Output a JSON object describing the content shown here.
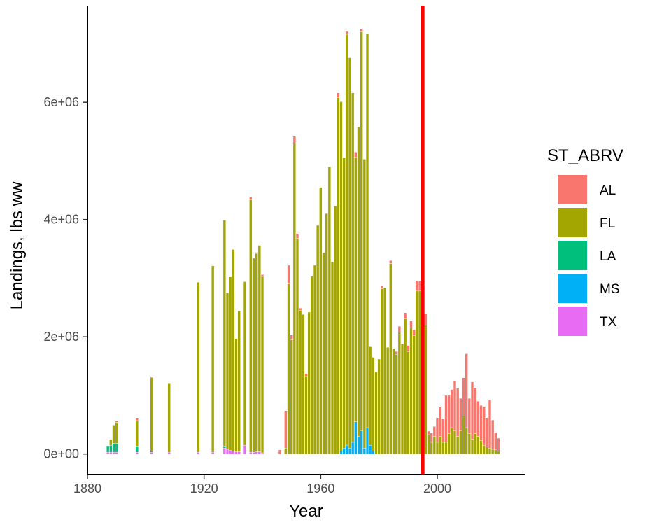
{
  "chart_data": {
    "type": "bar",
    "stacked": true,
    "xlabel": "Year",
    "ylabel": "Landings, lbs ww",
    "xlim": [
      1880,
      2030
    ],
    "ylim": [
      -350000,
      7650000
    ],
    "x_ticks": [
      1880,
      1920,
      1960,
      2000
    ],
    "y_ticks": [
      0,
      2000000,
      4000000,
      6000000
    ],
    "y_tick_labels": [
      "0e+00",
      "2e+06",
      "4e+06",
      "6e+06"
    ],
    "reference_line": {
      "x": 1995,
      "color": "#ff0000"
    },
    "legend": {
      "title": "ST_ABRV",
      "placement": "right",
      "entries": [
        {
          "label": "AL",
          "color": "#f8766d"
        },
        {
          "label": "FL",
          "color": "#a3a500"
        },
        {
          "label": "LA",
          "color": "#00bf7d"
        },
        {
          "label": "MS",
          "color": "#00b0f6"
        },
        {
          "label": "TX",
          "color": "#e76bf3"
        }
      ]
    },
    "series_order": [
      "TX",
      "MS",
      "LA",
      "FL",
      "AL"
    ],
    "bars": [
      {
        "year": 1887,
        "TX": 30000,
        "LA": 110000
      },
      {
        "year": 1888,
        "TX": 30000,
        "LA": 120000,
        "FL": 100000
      },
      {
        "year": 1889,
        "TX": 30000,
        "LA": 150000,
        "FL": 310000,
        "AL": 10000
      },
      {
        "year": 1890,
        "TX": 30000,
        "LA": 150000,
        "FL": 360000,
        "AL": 20000
      },
      {
        "year": 1897,
        "TX": 30000,
        "LA": 100000,
        "FL": 440000,
        "AL": 50000
      },
      {
        "year": 1902,
        "TX": 30000,
        "LA": 20000,
        "FL": 1250000,
        "AL": 20000
      },
      {
        "year": 1908,
        "TX": 30000,
        "FL": 1180000
      },
      {
        "year": 1918,
        "TX": 30000,
        "FL": 2900000
      },
      {
        "year": 1923,
        "TX": 30000,
        "FL": 3180000
      },
      {
        "year": 1927,
        "TX": 100000,
        "LA": 30000,
        "FL": 3860000
      },
      {
        "year": 1928,
        "TX": 80000,
        "FL": 2670000
      },
      {
        "year": 1929,
        "TX": 60000,
        "FL": 2960000
      },
      {
        "year": 1930,
        "TX": 50000,
        "FL": 3440000
      },
      {
        "year": 1931,
        "TX": 40000,
        "FL": 1930000
      },
      {
        "year": 1932,
        "TX": 40000,
        "FL": 2400000
      },
      {
        "year": 1934,
        "TX": 150000,
        "FL": 2790000
      },
      {
        "year": 1936,
        "TX": 30000,
        "FL": 4310000,
        "AL": 40000
      },
      {
        "year": 1937,
        "TX": 30000,
        "FL": 3310000
      },
      {
        "year": 1938,
        "TX": 40000,
        "FL": 3380000,
        "AL": 20000
      },
      {
        "year": 1939,
        "TX": 40000,
        "FL": 3520000
      },
      {
        "year": 1940,
        "TX": 20000,
        "FL": 3010000,
        "AL": 30000
      },
      {
        "year": 1946,
        "AL": 70000
      },
      {
        "year": 1948,
        "FL": 100000,
        "AL": 640000
      },
      {
        "year": 1949,
        "FL": 2900000,
        "AL": 320000
      },
      {
        "year": 1950,
        "FL": 1950000,
        "AL": 80000
      },
      {
        "year": 1951,
        "FL": 5300000,
        "AL": 120000
      },
      {
        "year": 1952,
        "FL": 3680000,
        "AL": 80000
      },
      {
        "year": 1953,
        "FL": 2450000,
        "AL": 40000
      },
      {
        "year": 1954,
        "FL": 2380000
      },
      {
        "year": 1955,
        "FL": 1330000,
        "AL": 40000
      },
      {
        "year": 1956,
        "FL": 2420000
      },
      {
        "year": 1957,
        "FL": 3030000
      },
      {
        "year": 1958,
        "FL": 3220000
      },
      {
        "year": 1959,
        "FL": 3900000
      },
      {
        "year": 1960,
        "FL": 4550000
      },
      {
        "year": 1961,
        "FL": 3440000
      },
      {
        "year": 1962,
        "FL": 4100000
      },
      {
        "year": 1963,
        "FL": 4900000
      },
      {
        "year": 1964,
        "FL": 3280000
      },
      {
        "year": 1965,
        "FL": 4230000
      },
      {
        "year": 1966,
        "FL": 6080000,
        "AL": 80000
      },
      {
        "year": 1967,
        "MS": 50000,
        "FL": 5960000
      },
      {
        "year": 1968,
        "MS": 100000,
        "FL": 4950000
      },
      {
        "year": 1969,
        "MS": 150000,
        "FL": 7010000,
        "AL": 50000
      },
      {
        "year": 1970,
        "MS": 100000,
        "FL": 6660000
      },
      {
        "year": 1971,
        "MS": 200000,
        "FL": 5960000
      },
      {
        "year": 1972,
        "MS": 550000,
        "FL": 4500000,
        "AL": 100000
      },
      {
        "year": 1973,
        "MS": 300000,
        "FL": 5280000
      },
      {
        "year": 1974,
        "MS": 400000,
        "FL": 6800000,
        "AL": 50000
      },
      {
        "year": 1975,
        "MS": 100000,
        "FL": 4930000
      },
      {
        "year": 1976,
        "MS": 450000,
        "FL": 6720000
      },
      {
        "year": 1977,
        "MS": 150000,
        "FL": 1680000
      },
      {
        "year": 1978,
        "MS": 50000,
        "FL": 1600000
      },
      {
        "year": 1979,
        "FL": 1400000
      },
      {
        "year": 1980,
        "FL": 1620000
      },
      {
        "year": 1981,
        "FL": 2820000,
        "AL": 50000
      },
      {
        "year": 1982,
        "FL": 2830000
      },
      {
        "year": 1983,
        "FL": 1820000
      },
      {
        "year": 1984,
        "FL": 3250000,
        "AL": 50000
      },
      {
        "year": 1985,
        "FL": 1800000
      },
      {
        "year": 1986,
        "FL": 1700000,
        "AL": 50000
      },
      {
        "year": 1987,
        "FL": 2080000,
        "AL": 100000
      },
      {
        "year": 1988,
        "FL": 1880000
      },
      {
        "year": 1989,
        "FL": 2310000,
        "AL": 100000
      },
      {
        "year": 1990,
        "FL": 1750000,
        "AL": 100000
      },
      {
        "year": 1991,
        "FL": 2150000,
        "AL": 120000
      },
      {
        "year": 1992,
        "FL": 2020000,
        "AL": 100000
      },
      {
        "year": 1993,
        "FL": 2780000,
        "AL": 180000
      },
      {
        "year": 1994,
        "FL": 2780000,
        "AL": 180000
      },
      {
        "year": 1995,
        "FL": 2000000,
        "AL": 150000
      },
      {
        "year": 1996,
        "FL": 2200000,
        "AL": 200000
      },
      {
        "year": 1997,
        "FL": 330000,
        "AL": 60000
      },
      {
        "year": 1998,
        "FL": 200000,
        "AL": 160000
      },
      {
        "year": 1999,
        "FL": 300000,
        "AL": 170000
      },
      {
        "year": 2000,
        "FL": 200000,
        "AL": 420000
      },
      {
        "year": 2001,
        "FL": 300000,
        "AL": 500000
      },
      {
        "year": 2002,
        "FL": 200000,
        "AL": 400000
      },
      {
        "year": 2003,
        "FL": 200000,
        "AL": 800000
      },
      {
        "year": 2004,
        "FL": 350000,
        "AL": 650000
      },
      {
        "year": 2005,
        "FL": 450000,
        "AL": 650000
      },
      {
        "year": 2006,
        "FL": 400000,
        "AL": 850000
      },
      {
        "year": 2007,
        "FL": 300000,
        "AL": 820000
      },
      {
        "year": 2008,
        "FL": 400000,
        "AL": 550000
      },
      {
        "year": 2009,
        "FL": 650000,
        "AL": 650000
      },
      {
        "year": 2010,
        "FL": 450000,
        "AL": 1260000
      },
      {
        "year": 2011,
        "FL": 350000,
        "AL": 600000
      },
      {
        "year": 2012,
        "FL": 250000,
        "AL": 980000
      },
      {
        "year": 2013,
        "FL": 350000,
        "AL": 780000
      },
      {
        "year": 2014,
        "FL": 300000,
        "AL": 600000
      },
      {
        "year": 2015,
        "FL": 230000,
        "AL": 600000
      },
      {
        "year": 2016,
        "FL": 150000,
        "AL": 650000
      },
      {
        "year": 2017,
        "FL": 120000,
        "AL": 500000
      },
      {
        "year": 2018,
        "FL": 100000,
        "AL": 830000
      },
      {
        "year": 2019,
        "FL": 80000,
        "AL": 500000
      },
      {
        "year": 2020,
        "FL": 70000,
        "AL": 300000
      },
      {
        "year": 2021,
        "FL": 50000,
        "AL": 220000
      }
    ]
  }
}
